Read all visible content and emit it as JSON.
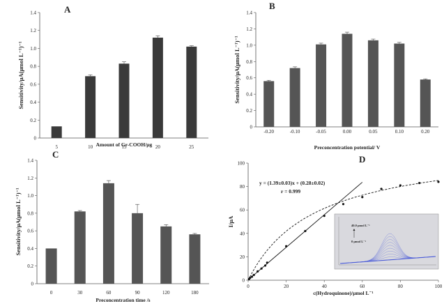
{
  "chart_data": [
    {
      "panel": "A",
      "type": "bar",
      "xlabel": "Amount of Gr-COOH/μg",
      "ylabel": "Sensitivity/μA(μmol L⁻¹)⁻¹",
      "ylim": [
        0,
        1.4
      ],
      "yticks": [
        "0",
        "0.2",
        "0.4",
        "0.6",
        "0.8",
        "1.0",
        "1.2",
        "1.4"
      ],
      "categories": [
        "5",
        "10",
        "15",
        "20",
        "25"
      ],
      "values": [
        0.13,
        0.69,
        0.83,
        1.12,
        1.02
      ],
      "errors": [
        0.0,
        0.015,
        0.02,
        0.02,
        0.01
      ],
      "bar_color": "#3a3a3a"
    },
    {
      "panel": "B",
      "type": "bar",
      "xlabel": "Preconcentration potential/ V",
      "ylabel": "Sensitivity/μA(μmol L⁻¹)⁻¹",
      "ylim": [
        0,
        1.4
      ],
      "yticks": [
        "0",
        "0.2",
        "0.4",
        "0.6",
        "0.8",
        "1.0",
        "1.2",
        "1.4"
      ],
      "categories": [
        "-0.20",
        "-0.10",
        "-0.05",
        "0.00",
        "0.05",
        "0.10",
        "0.20"
      ],
      "values": [
        0.56,
        0.72,
        1.01,
        1.14,
        1.06,
        1.02,
        0.58
      ],
      "errors": [
        0.01,
        0.015,
        0.015,
        0.02,
        0.015,
        0.015,
        0.008
      ],
      "bar_color": "#555555"
    },
    {
      "panel": "C",
      "type": "bar",
      "xlabel": "Preconcentration time /s",
      "ylabel": "Sensitivity/μA(μmol L⁻¹)⁻¹",
      "ylim": [
        0,
        1.4
      ],
      "yticks": [
        "0",
        "0.2",
        "0.4",
        "0.6",
        "0.8",
        "1.0",
        "1.2",
        "1.4"
      ],
      "categories": [
        "0",
        "30",
        "60",
        "90",
        "120",
        "180"
      ],
      "values": [
        0.4,
        0.82,
        1.14,
        0.8,
        0.65,
        0.56
      ],
      "errors": [
        0.0,
        0.01,
        0.03,
        0.1,
        0.02,
        0.01
      ],
      "bar_color": "#555555"
    },
    {
      "panel": "D",
      "type": "scatter",
      "xlabel": "c(Hydroquinone)/μmol L⁻¹",
      "ylabel": "I/μA",
      "xlim": [
        0,
        100
      ],
      "ylim": [
        0,
        100
      ],
      "xticks": [
        "0",
        "20",
        "40",
        "60",
        "80",
        "100"
      ],
      "yticks": [
        "0",
        "20",
        "40",
        "60",
        "80",
        "100"
      ],
      "points": {
        "x": [
          0.5,
          1,
          2,
          3,
          5,
          7,
          9,
          10,
          20,
          30,
          40,
          50,
          60,
          70,
          80,
          90,
          100
        ],
        "y": [
          1,
          2,
          3,
          4.5,
          7.5,
          10,
          12.5,
          15,
          29,
          42,
          55,
          65,
          71,
          78,
          81,
          83,
          84
        ]
      },
      "linear_fit": {
        "slope": 1.39,
        "intercept": 0.28,
        "x_range": [
          0,
          60
        ]
      },
      "saturation_fit": {
        "Imax": 115,
        "K": 35,
        "x_range": [
          0,
          100
        ]
      },
      "equation": "y = (1.39±0.03)x + (0.28±0.02)",
      "r_text": "r = 0.999",
      "inset": {
        "label_top": "40.0 μmol L⁻¹",
        "label_bottom": "0 μmol L⁻¹",
        "background": "#d9d9de",
        "curve_color": "#4a5bd8"
      }
    }
  ]
}
